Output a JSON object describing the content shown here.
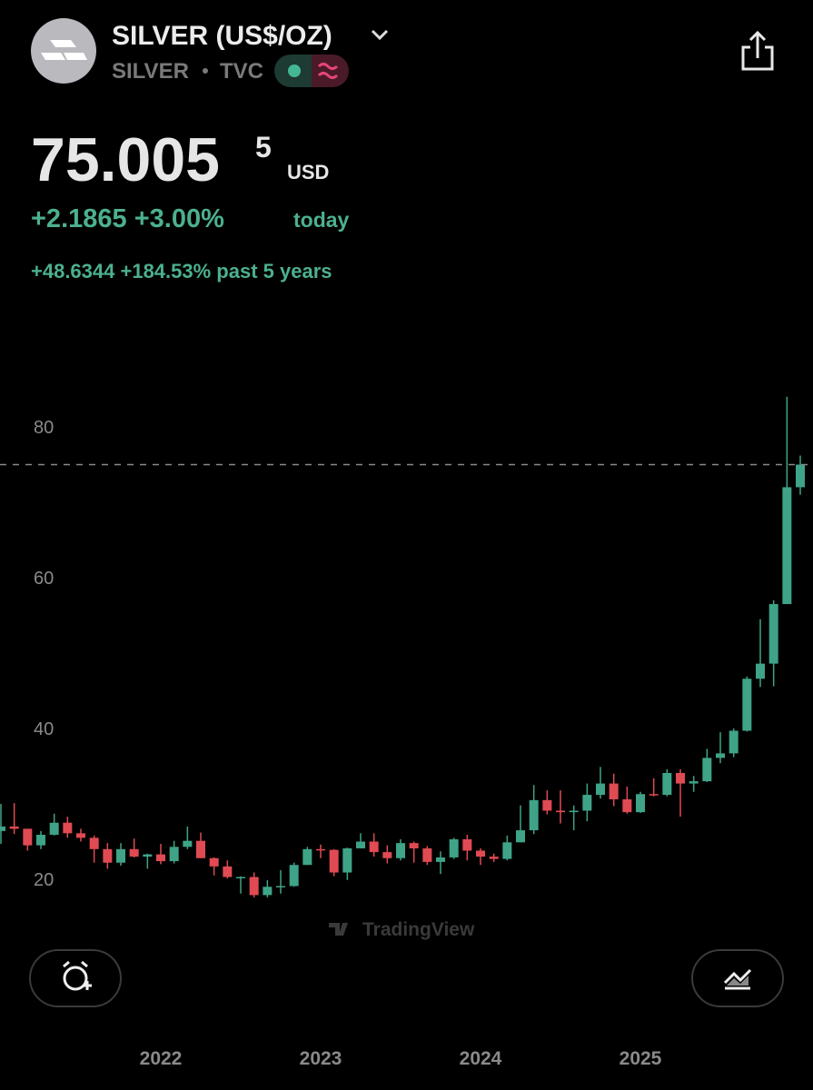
{
  "header": {
    "title": "SILVER (US$/OZ)",
    "symbol": "SILVER",
    "exchange": "TVC",
    "price": "75.005",
    "price_last_digit": "5",
    "currency": "USD",
    "change_today": "+2.1865 +3.00%",
    "today_label": "today",
    "change_5y": "+48.6344 +184.53% past 5 years"
  },
  "chart_data": {
    "type": "candlestick",
    "watermark": "TradingView",
    "categories": [
      null,
      null,
      null,
      null,
      null,
      null,
      null,
      null,
      null,
      null,
      null,
      null,
      "2022",
      null,
      null,
      null,
      null,
      null,
      null,
      null,
      null,
      null,
      null,
      null,
      "2023",
      null,
      null,
      null,
      null,
      null,
      null,
      null,
      null,
      null,
      null,
      null,
      "2024",
      null,
      null,
      null,
      null,
      null,
      null,
      null,
      null,
      null,
      null,
      null,
      "2025",
      null,
      null,
      null,
      null,
      null,
      null,
      null,
      null,
      null,
      null,
      null,
      null
    ],
    "open": [
      26.4,
      27.0,
      26.7,
      24.5,
      25.9,
      27.5,
      26.1,
      25.5,
      24.0,
      22.2,
      24.0,
      23.0,
      23.3,
      22.4,
      24.3,
      25.1,
      22.8,
      21.7,
      20.3,
      20.3,
      17.9,
      19.0,
      19.1,
      21.9,
      24.0,
      23.9,
      20.9,
      24.1,
      25.0,
      23.6,
      22.8,
      24.8,
      24.1,
      22.3,
      22.9,
      25.3,
      23.8,
      23.0,
      22.7,
      24.9,
      26.5,
      30.5,
      29.1,
      28.9,
      29.1,
      31.2,
      32.7,
      30.6,
      28.9,
      31.3,
      31.2,
      34.1,
      32.7,
      33.0,
      36.1,
      36.7,
      39.7,
      46.6,
      48.6,
      56.5,
      72.0
    ],
    "high": [
      30.0,
      30.1,
      26.7,
      26.4,
      28.7,
      28.3,
      26.7,
      25.8,
      24.8,
      24.8,
      25.4,
      23.4,
      24.7,
      25.1,
      27.0,
      26.2,
      22.9,
      22.5,
      20.4,
      20.9,
      19.9,
      21.2,
      22.2,
      24.3,
      24.6,
      24.0,
      24.2,
      26.1,
      26.1,
      24.5,
      25.3,
      25.0,
      24.4,
      23.7,
      25.5,
      25.9,
      24.1,
      23.4,
      25.8,
      29.8,
      32.5,
      31.8,
      31.8,
      29.8,
      32.7,
      34.9,
      34.0,
      32.3,
      31.6,
      33.4,
      34.6,
      34.6,
      33.7,
      37.3,
      39.5,
      40.0,
      46.9,
      54.5,
      57.0,
      84.0,
      76.2
    ],
    "low": [
      24.7,
      26.0,
      23.8,
      24.0,
      25.8,
      25.5,
      25.0,
      22.2,
      21.4,
      21.8,
      22.9,
      21.4,
      22.0,
      22.1,
      24.0,
      22.8,
      20.5,
      20.1,
      18.1,
      17.6,
      17.6,
      18.1,
      19.0,
      21.9,
      22.8,
      20.4,
      19.9,
      24.1,
      23.0,
      22.1,
      22.5,
      22.2,
      21.9,
      20.7,
      22.7,
      22.5,
      21.9,
      22.3,
      22.5,
      24.9,
      26.0,
      28.6,
      27.4,
      26.5,
      27.7,
      30.7,
      29.7,
      28.7,
      28.8,
      31.0,
      31.0,
      28.3,
      31.6,
      32.9,
      35.4,
      36.2,
      39.6,
      45.5,
      45.6,
      56.5,
      71.0
    ],
    "close": [
      27.0,
      26.7,
      24.5,
      25.9,
      27.5,
      26.1,
      25.5,
      24.0,
      22.2,
      24.0,
      23.0,
      23.3,
      22.4,
      24.3,
      25.1,
      22.8,
      21.7,
      20.3,
      20.3,
      17.9,
      19.0,
      19.1,
      21.9,
      24.0,
      23.9,
      20.9,
      24.1,
      25.0,
      23.6,
      22.8,
      24.8,
      24.1,
      22.3,
      22.9,
      25.3,
      23.8,
      23.0,
      22.7,
      24.9,
      26.5,
      30.5,
      29.1,
      28.9,
      29.1,
      31.2,
      32.7,
      30.6,
      28.9,
      31.3,
      31.2,
      34.1,
      32.7,
      33.0,
      36.1,
      36.7,
      39.7,
      46.6,
      48.6,
      56.5,
      72.0,
      75.0055
    ],
    "up_color": "#3fa387",
    "down_color": "#e04a52",
    "ylim": [
      10,
      90
    ],
    "yticks": [
      20,
      40,
      60,
      80
    ],
    "grid": false
  }
}
